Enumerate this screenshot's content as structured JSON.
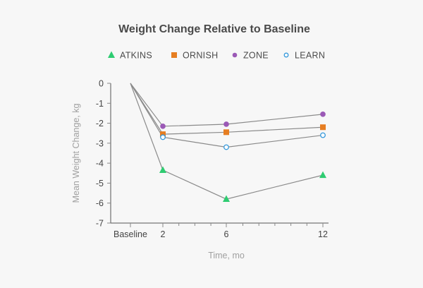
{
  "chart_data": {
    "type": "line",
    "title": "Weight Change Relative to Baseline",
    "xlabel": "Time, mo",
    "ylabel": "Mean Weight Change, kg",
    "x": [
      "Baseline",
      "2",
      "6",
      "12"
    ],
    "ylim": [
      -7,
      0
    ],
    "yticks": [
      0,
      -1,
      -2,
      -3,
      -4,
      -5,
      -6,
      -7
    ],
    "legend_position": "top",
    "grid": false,
    "series": [
      {
        "name": "ATKINS",
        "values": [
          0,
          -4.35,
          -5.8,
          -4.6
        ],
        "color": "#2ecc71",
        "marker": "triangle"
      },
      {
        "name": "ORNISH",
        "values": [
          0,
          -2.55,
          -2.45,
          -2.2
        ],
        "color": "#e67e22",
        "marker": "square"
      },
      {
        "name": "ZONE",
        "values": [
          0,
          -2.15,
          -2.05,
          -1.55
        ],
        "color": "#9b59b6",
        "marker": "circle"
      },
      {
        "name": "LEARN",
        "values": [
          0,
          -2.7,
          -3.2,
          -2.6
        ],
        "color": "#3498db",
        "marker": "open-circle"
      }
    ]
  }
}
